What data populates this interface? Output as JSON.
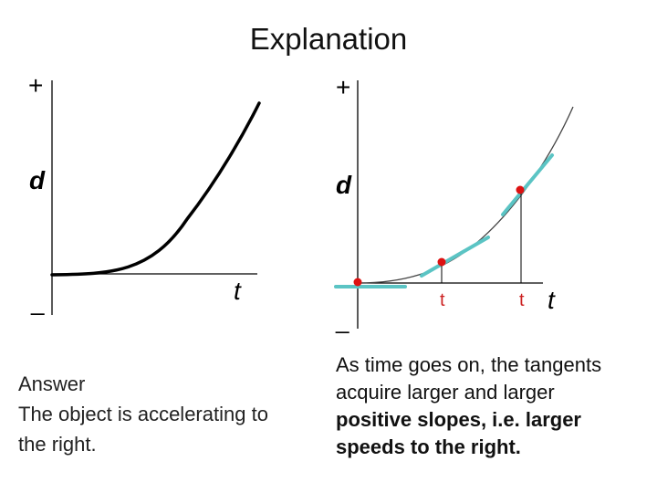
{
  "title": "Explanation",
  "left_graph": {
    "plus_label": "+",
    "minus_label": "_",
    "y_label": "d",
    "x_label": "t"
  },
  "right_graph": {
    "plus_label": "+",
    "minus_label": "_",
    "y_label": "d",
    "x_label": "t",
    "tick_label_1": "t",
    "tick_label_2": "t"
  },
  "answer": {
    "heading": "Answer",
    "line1": "The object is accelerating to",
    "line2": "the right."
  },
  "explanation": {
    "line1": "As time goes on, the tangents",
    "line2": "acquire larger and larger",
    "line3": "positive slopes, i.e. larger",
    "line4": "speeds to the right."
  },
  "colors": {
    "curve": "#000000",
    "tangent": "#5bc4c4",
    "point": "#dd1111",
    "tick_label": "#cc2222"
  }
}
